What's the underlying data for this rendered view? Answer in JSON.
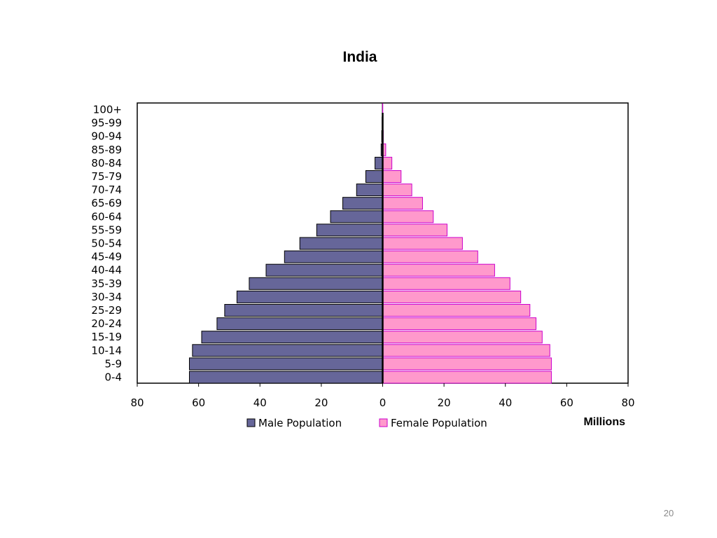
{
  "slide": {
    "page_number": "20"
  },
  "colors": {
    "male_fill": "#666699",
    "male_stroke": "#000000",
    "female_fill": "#ff99cc",
    "female_stroke": "#cc00cc",
    "axis": "#000000"
  },
  "chart_data": {
    "type": "bar",
    "orientation": "horizontal",
    "title": "India",
    "xlabel": "Millions",
    "xlim": [
      -80,
      80
    ],
    "x_ticks": [
      80,
      60,
      40,
      20,
      0,
      20,
      40,
      60,
      80
    ],
    "grid": false,
    "legend_position": "bottom",
    "categories": [
      "0-4",
      "5-9",
      "10-14",
      "15-19",
      "20-24",
      "25-29",
      "30-34",
      "35-39",
      "40-44",
      "45-49",
      "50-54",
      "55-59",
      "60-64",
      "65-69",
      "70-74",
      "75-79",
      "80-84",
      "85-89",
      "90-94",
      "95-99",
      "100+"
    ],
    "series": [
      {
        "name": "Male Population",
        "direction": "left",
        "values": [
          63,
          63,
          62,
          59,
          54,
          51.5,
          47.5,
          43.5,
          38,
          32,
          27,
          21.5,
          17,
          13,
          8.5,
          5.5,
          2.5,
          0.5,
          0.3,
          0.2,
          0.1
        ]
      },
      {
        "name": "Female Population",
        "direction": "right",
        "values": [
          55,
          55,
          54.5,
          52,
          50,
          48,
          45,
          41.5,
          36.5,
          31,
          26,
          21,
          16.5,
          13,
          9.5,
          6,
          3,
          1,
          0.2,
          0.1,
          0.05
        ]
      }
    ]
  }
}
